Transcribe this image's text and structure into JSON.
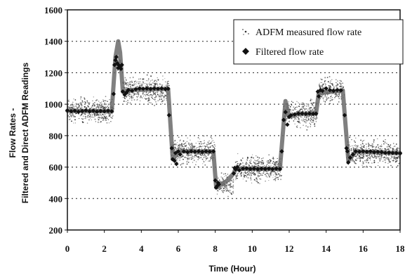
{
  "chart_data": {
    "type": "scatter",
    "xlabel": "Time  (Hour)",
    "ylabel_line1": "Flow Rates -",
    "ylabel_line2": "Filtered and Direct ADFM Readings",
    "xlim": [
      0,
      18
    ],
    "ylim": [
      200,
      1600
    ],
    "x_ticks": [
      0,
      2,
      4,
      6,
      8,
      10,
      12,
      14,
      16,
      18
    ],
    "y_ticks": [
      200,
      400,
      600,
      800,
      1000,
      1200,
      1400,
      1600
    ],
    "x_tick_labels": [
      "0",
      "2",
      "4",
      "6",
      "8",
      "10",
      "12",
      "14",
      "16",
      "18"
    ],
    "y_tick_labels": [
      "200",
      "400",
      "600",
      "800",
      "1000",
      "1200",
      "1400",
      "1600"
    ],
    "grid": "horizontal dotted",
    "legend_position": "top-right",
    "legend": [
      "ADFM measured flow rate",
      "Filtered flow rate"
    ],
    "series": [
      {
        "name": "ADFM measured flow rate",
        "marker": "small-dot",
        "color": "#555555",
        "segments": [
          {
            "x_start": 0.0,
            "x_end": 2.5,
            "center": 960,
            "spread": 110
          },
          {
            "x_start": 2.55,
            "x_end": 2.9,
            "center": 1260,
            "spread": 60
          },
          {
            "x_start": 3.0,
            "x_end": 5.5,
            "center": 1090,
            "spread": 110
          },
          {
            "x_start": 5.6,
            "x_end": 8.0,
            "center": 700,
            "spread": 110
          },
          {
            "x_start": 8.1,
            "x_end": 9.0,
            "center": 490,
            "spread": 90
          },
          {
            "x_start": 9.1,
            "x_end": 11.6,
            "center": 590,
            "spread": 110
          },
          {
            "x_start": 11.7,
            "x_end": 13.5,
            "center": 940,
            "spread": 110
          },
          {
            "x_start": 13.6,
            "x_end": 15.0,
            "center": 1090,
            "spread": 110
          },
          {
            "x_start": 15.1,
            "x_end": 18.0,
            "center": 690,
            "spread": 110
          }
        ]
      },
      {
        "name": "Filtered flow rate",
        "marker": "diamond",
        "color": "#111111",
        "points": [
          [
            0.0,
            960
          ],
          [
            0.2,
            955
          ],
          [
            0.4,
            958
          ],
          [
            0.6,
            952
          ],
          [
            0.8,
            956
          ],
          [
            1.0,
            960
          ],
          [
            1.2,
            955
          ],
          [
            1.4,
            958
          ],
          [
            1.6,
            953
          ],
          [
            1.8,
            957
          ],
          [
            2.0,
            955
          ],
          [
            2.2,
            958
          ],
          [
            2.4,
            955
          ],
          [
            2.5,
            1065
          ],
          [
            2.55,
            1250
          ],
          [
            2.6,
            1280
          ],
          [
            2.65,
            1300
          ],
          [
            2.7,
            1260
          ],
          [
            2.75,
            1230
          ],
          [
            2.8,
            1245
          ],
          [
            2.85,
            1240
          ],
          [
            2.9,
            1225
          ],
          [
            2.95,
            1250
          ],
          [
            3.0,
            1080
          ],
          [
            3.1,
            1060
          ],
          [
            3.2,
            1075
          ],
          [
            3.3,
            1090
          ],
          [
            3.5,
            1085
          ],
          [
            3.7,
            1095
          ],
          [
            3.9,
            1100
          ],
          [
            4.1,
            1098
          ],
          [
            4.3,
            1100
          ],
          [
            4.5,
            1097
          ],
          [
            4.7,
            1100
          ],
          [
            4.9,
            1098
          ],
          [
            5.1,
            1100
          ],
          [
            5.3,
            1096
          ],
          [
            5.45,
            1098
          ],
          [
            5.5,
            930
          ],
          [
            5.65,
            720
          ],
          [
            5.7,
            650
          ],
          [
            5.8,
            640
          ],
          [
            5.85,
            690
          ],
          [
            5.9,
            620
          ],
          [
            6.0,
            700
          ],
          [
            6.1,
            680
          ],
          [
            6.3,
            700
          ],
          [
            6.5,
            695
          ],
          [
            6.7,
            700
          ],
          [
            6.9,
            698
          ],
          [
            7.1,
            700
          ],
          [
            7.3,
            697
          ],
          [
            7.5,
            700
          ],
          [
            7.7,
            698
          ],
          [
            7.9,
            700
          ],
          [
            8.0,
            515
          ],
          [
            8.05,
            470
          ],
          [
            8.1,
            480
          ],
          [
            8.15,
            500
          ],
          [
            8.2,
            490
          ],
          [
            9.0,
            560
          ],
          [
            9.05,
            595
          ],
          [
            9.1,
            585
          ],
          [
            9.2,
            600
          ],
          [
            9.3,
            580
          ],
          [
            9.5,
            590
          ],
          [
            9.7,
            592
          ],
          [
            9.9,
            588
          ],
          [
            10.1,
            590
          ],
          [
            10.3,
            587
          ],
          [
            10.5,
            590
          ],
          [
            10.7,
            588
          ],
          [
            10.9,
            590
          ],
          [
            11.1,
            587
          ],
          [
            11.3,
            590
          ],
          [
            11.5,
            588
          ],
          [
            11.6,
            700
          ],
          [
            11.7,
            900
          ],
          [
            11.8,
            950
          ],
          [
            11.9,
            870
          ],
          [
            12.0,
            920
          ],
          [
            12.1,
            930
          ],
          [
            12.3,
            935
          ],
          [
            12.5,
            940
          ],
          [
            12.7,
            940
          ],
          [
            12.9,
            938
          ],
          [
            13.1,
            940
          ],
          [
            13.3,
            938
          ],
          [
            13.45,
            940
          ],
          [
            13.55,
            1080
          ],
          [
            13.6,
            1050
          ],
          [
            13.7,
            1090
          ],
          [
            13.8,
            1085
          ],
          [
            14.0,
            1100
          ],
          [
            14.2,
            1090
          ],
          [
            14.4,
            1085
          ],
          [
            14.6,
            1090
          ],
          [
            14.8,
            1088
          ],
          [
            15.0,
            930
          ],
          [
            15.1,
            720
          ],
          [
            15.15,
            700
          ],
          [
            15.2,
            630
          ],
          [
            15.3,
            660
          ],
          [
            15.45,
            680
          ],
          [
            15.6,
            700
          ],
          [
            15.8,
            698
          ],
          [
            16.0,
            700
          ],
          [
            16.2,
            697
          ],
          [
            16.4,
            700
          ],
          [
            16.6,
            695
          ],
          [
            16.8,
            697
          ],
          [
            17.0,
            695
          ],
          [
            17.2,
            690
          ],
          [
            17.4,
            692
          ],
          [
            17.6,
            690
          ],
          [
            17.8,
            690
          ],
          [
            18.0,
            688
          ]
        ],
        "smooth_trace": [
          [
            0.0,
            958
          ],
          [
            2.4,
            955
          ],
          [
            2.6,
            1300
          ],
          [
            2.75,
            1400
          ],
          [
            2.85,
            1330
          ],
          [
            3.0,
            1080
          ],
          [
            3.3,
            1090
          ],
          [
            5.45,
            1098
          ],
          [
            5.7,
            650
          ],
          [
            6.0,
            700
          ],
          [
            7.9,
            700
          ],
          [
            8.05,
            470
          ],
          [
            8.6,
            510
          ],
          [
            9.0,
            560
          ],
          [
            9.1,
            590
          ],
          [
            11.5,
            588
          ],
          [
            11.8,
            1020
          ],
          [
            12.0,
            920
          ],
          [
            12.5,
            940
          ],
          [
            13.45,
            940
          ],
          [
            13.6,
            1070
          ],
          [
            14.9,
            1088
          ],
          [
            15.2,
            640
          ],
          [
            15.6,
            700
          ],
          [
            18.0,
            688
          ]
        ]
      }
    ]
  }
}
